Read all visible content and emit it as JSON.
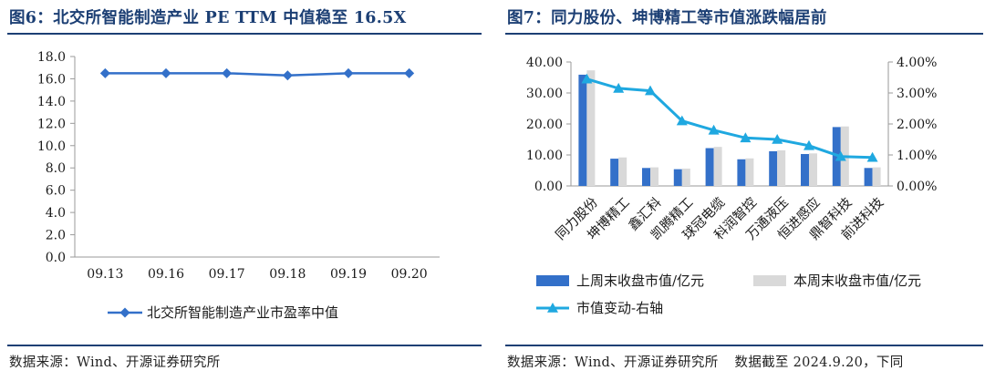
{
  "left": {
    "title": "图6：北交所智能制造产业 PE TTM 中值稳至 16.5X",
    "source": "数据来源：Wind、开源证券研究所",
    "legend_label": "北交所智能制造产业市盈率中值",
    "chart_data": {
      "type": "line",
      "categories": [
        "09.13",
        "09.16",
        "09.17",
        "09.18",
        "09.19",
        "09.20"
      ],
      "series": [
        {
          "name": "北交所智能制造产业市盈率中值",
          "values": [
            16.5,
            16.5,
            16.5,
            16.3,
            16.5,
            16.5
          ],
          "color": "#3370c9",
          "marker": "diamond"
        }
      ],
      "ylim": [
        0,
        18
      ],
      "yticks": [
        "0.0",
        "2.0",
        "4.0",
        "6.0",
        "8.0",
        "10.0",
        "12.0",
        "14.0",
        "16.0",
        "18.0"
      ],
      "grid": false,
      "legend": "bottom"
    }
  },
  "right": {
    "title": "图7：同力股份、坤博精工等市值涨跌幅居前",
    "source": "数据来源：Wind、开源证券研究所",
    "source_note": "数据截至 2024.9.20，下同",
    "chart_data": {
      "type": "bar",
      "categories": [
        "同力股份",
        "坤博精工",
        "鑫汇科",
        "凯腾精工",
        "球冠电缆",
        "科润智控",
        "万通液压",
        "恒进感应",
        "鼎智科技",
        "前进科技"
      ],
      "series": [
        {
          "name": "上周末收盘市值/亿元",
          "type": "bar",
          "axis": "left",
          "color": "#3370c9",
          "values": [
            35.9,
            8.8,
            5.8,
            5.4,
            12.2,
            8.6,
            11.2,
            10.3,
            19.0,
            5.8
          ]
        },
        {
          "name": "本周末收盘市值/亿元",
          "type": "bar",
          "axis": "left",
          "color": "#d9d9d9",
          "values": [
            37.3,
            9.2,
            6.0,
            5.6,
            12.6,
            8.9,
            11.5,
            10.5,
            19.2,
            6.0
          ]
        },
        {
          "name": "市值变动-右轴",
          "type": "line",
          "axis": "right",
          "color": "#1fa8e0",
          "marker": "triangle",
          "values": [
            3.45,
            3.15,
            3.07,
            2.1,
            1.8,
            1.55,
            1.5,
            1.3,
            0.95,
            0.92
          ]
        }
      ],
      "ylim_left": [
        0,
        40
      ],
      "yticks_left": [
        "0.00",
        "10.00",
        "20.00",
        "30.00",
        "40.00"
      ],
      "ylim_right": [
        0,
        4
      ],
      "yticks_right": [
        "0.00%",
        "1.00%",
        "2.00%",
        "3.00%",
        "4.00%"
      ],
      "grid": false,
      "legend": "bottom"
    }
  }
}
